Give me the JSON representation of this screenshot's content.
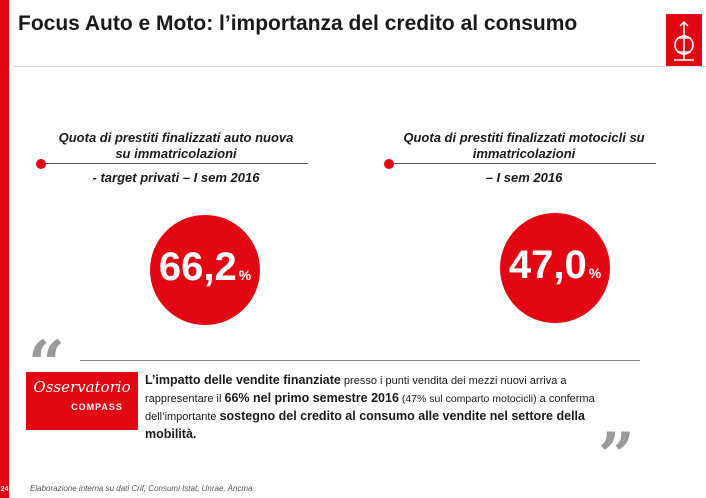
{
  "title": "Focus Auto e Moto: l’importanza del credito al consumo",
  "page_number": "24",
  "left_block": {
    "line1": "Quota di prestiti finalizzati auto nuova",
    "line2": "su immatricolazioni",
    "line3": "- target privati – I sem 2016",
    "value": "66,2",
    "unit": "%"
  },
  "right_block": {
    "line1": "Quota di prestiti finalizzati motocicli su",
    "line2": "immatricolazioni",
    "line3": "– I sem 2016",
    "value": "47,0",
    "unit": "%"
  },
  "quote": {
    "open_mark": "“",
    "close_mark": "”",
    "brand_line1": "Osservatorio",
    "brand_line2": "COMPASS",
    "t1": "L’impatto delle vendite finanziate",
    "t2": " presso i punti vendita dei mezzi nuovi arriva a rappresentare il ",
    "t3": "66% nel primo semestre 2016",
    "t4": " (47% sul comparto motocicli)",
    "t5": " a conferma dell’importante ",
    "t6": "sostegno del credito al consumo alle vendite nel settore della mobilità.",
    "accent_color": "#e30613"
  },
  "footnote": "Elaborazione interna su dati Crif, Consumi Istat, Unrae,  Ancma"
}
